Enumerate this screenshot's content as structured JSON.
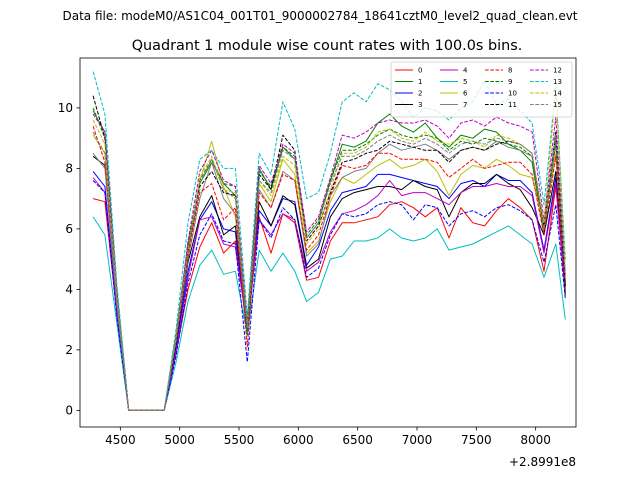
{
  "figure": {
    "suptitle": "Data file: modeM0/AS1C04_001T01_9000002784_18641cztM0_level2_quad_clean.evt",
    "title": "Quadrant 1 module wise count rates with 100.0s bins.",
    "offset_text": "+2.8991e8"
  },
  "chart_data": {
    "type": "line",
    "title": "Quadrant 1 module wise count rates with 100.0s bins.",
    "xlabel": "",
    "ylabel": "",
    "x_offset": 289910000,
    "xlim": [
      4160,
      8340
    ],
    "ylim": [
      -0.55,
      11.65
    ],
    "x_ticks": [
      4500,
      5000,
      5500,
      6000,
      6500,
      7000,
      7500,
      8000
    ],
    "x_tick_labels": [
      "4500",
      "5000",
      "5500",
      "6000",
      "6500",
      "7000",
      "7500",
      "8000"
    ],
    "y_ticks": [
      0,
      2,
      4,
      6,
      8,
      10
    ],
    "y_tick_labels": [
      "0",
      "2",
      "4",
      "6",
      "8",
      "10"
    ],
    "grid": false,
    "legend_position": "top-right",
    "x": [
      4270,
      4370,
      4470,
      4570,
      4670,
      4770,
      4870,
      4970,
      5070,
      5170,
      5270,
      5370,
      5470,
      5570,
      5670,
      5770,
      5870,
      5970,
      6070,
      6170,
      6270,
      6370,
      6470,
      6570,
      6670,
      6770,
      6870,
      6970,
      7070,
      7170,
      7270,
      7370,
      7470,
      7570,
      7670,
      7770,
      7870,
      7970,
      8070,
      8170,
      8250
    ],
    "series": [
      {
        "name": "0",
        "color": "#ff0000",
        "dash": "solid",
        "values": [
          7.0,
          6.9,
          3.2,
          0,
          0,
          0,
          0,
          1.9,
          4.0,
          5.4,
          6.2,
          5.2,
          5.6,
          2.8,
          6.4,
          5.2,
          6.5,
          6.2,
          4.3,
          4.4,
          5.6,
          6.2,
          6.2,
          6.3,
          6.4,
          6.8,
          6.9,
          6.7,
          6.4,
          6.7,
          5.7,
          6.7,
          6.2,
          6.1,
          6.6,
          7.0,
          6.7,
          6.3,
          4.6,
          7.4,
          3.9
        ]
      },
      {
        "name": "1",
        "color": "#008000",
        "dash": "solid",
        "values": [
          9.9,
          9.2,
          4.0,
          0,
          0,
          0,
          0,
          2.5,
          5.5,
          7.5,
          8.2,
          7.5,
          7.1,
          2.9,
          8.0,
          7.3,
          8.7,
          8.3,
          5.7,
          6.2,
          7.6,
          8.8,
          8.7,
          8.9,
          9.5,
          9.8,
          9.4,
          9.2,
          9.5,
          9.0,
          8.7,
          9.1,
          9.0,
          9.3,
          9.2,
          8.8,
          8.6,
          8.2,
          5.8,
          9.2,
          4.2
        ]
      },
      {
        "name": "2",
        "color": "#0000ff",
        "dash": "solid",
        "values": [
          7.9,
          7.4,
          3.3,
          0,
          0,
          0,
          0,
          2.1,
          4.6,
          6.3,
          6.9,
          6.0,
          5.9,
          2.5,
          6.6,
          6.1,
          7.0,
          6.9,
          4.8,
          5.4,
          6.6,
          7.2,
          7.3,
          7.4,
          7.8,
          7.8,
          7.7,
          7.6,
          7.5,
          7.4,
          7.0,
          7.5,
          7.6,
          7.4,
          7.8,
          7.6,
          7.6,
          7.2,
          5.3,
          7.7,
          4.0
        ]
      },
      {
        "name": "3",
        "color": "#000000",
        "dash": "solid",
        "values": [
          8.4,
          8.1,
          3.5,
          0,
          0,
          0,
          0,
          2.2,
          4.9,
          6.4,
          7.1,
          5.8,
          6.1,
          2.9,
          6.9,
          6.1,
          7.1,
          6.8,
          4.7,
          5.0,
          6.4,
          7.0,
          7.2,
          7.3,
          7.4,
          7.4,
          7.3,
          7.6,
          7.4,
          7.3,
          6.4,
          7.2,
          7.5,
          7.5,
          7.8,
          7.5,
          7.3,
          6.7,
          5.8,
          7.9,
          3.8
        ]
      },
      {
        "name": "4",
        "color": "#bf00bf",
        "dash": "solid",
        "values": [
          7.7,
          7.2,
          3.2,
          0,
          0,
          0,
          0,
          1.9,
          4.4,
          6.3,
          6.4,
          5.5,
          5.4,
          2.7,
          6.3,
          5.8,
          6.5,
          6.3,
          4.6,
          4.9,
          5.9,
          6.5,
          6.6,
          6.8,
          7.1,
          7.6,
          7.1,
          7.2,
          7.2,
          7.0,
          6.8,
          7.2,
          7.4,
          7.4,
          7.5,
          7.4,
          7.4,
          7.1,
          5.2,
          7.5,
          4.0
        ]
      },
      {
        "name": "5",
        "color": "#00bfbf",
        "dash": "solid",
        "values": [
          6.4,
          5.8,
          2.9,
          0,
          0,
          0,
          0,
          1.6,
          3.6,
          4.8,
          5.3,
          4.5,
          4.6,
          2.5,
          5.3,
          4.6,
          5.2,
          4.6,
          3.6,
          3.9,
          5.0,
          5.1,
          5.6,
          5.6,
          5.7,
          6.0,
          5.7,
          5.6,
          5.7,
          6.0,
          5.3,
          5.4,
          5.5,
          5.7,
          5.9,
          6.1,
          5.8,
          5.5,
          4.4,
          5.5,
          3.0
        ]
      },
      {
        "name": "6",
        "color": "#bfbf00",
        "dash": "solid",
        "values": [
          9.1,
          8.5,
          3.7,
          0,
          0,
          0,
          0,
          2.4,
          5.2,
          7.6,
          8.9,
          7.4,
          6.4,
          2.7,
          7.5,
          6.9,
          8.3,
          7.8,
          5.2,
          5.6,
          6.9,
          7.7,
          7.5,
          7.8,
          8.1,
          8.3,
          8.0,
          8.1,
          8.3,
          7.9,
          7.1,
          7.8,
          8.1,
          8.0,
          8.3,
          8.1,
          7.8,
          7.7,
          6.1,
          8.5,
          4.3
        ]
      },
      {
        "name": "7",
        "color": "#808080",
        "dash": "solid",
        "values": [
          8.5,
          8.0,
          3.5,
          0,
          0,
          0,
          0,
          2.3,
          5.0,
          7.0,
          8.2,
          7.0,
          6.5,
          2.7,
          7.3,
          6.7,
          7.9,
          7.6,
          5.1,
          5.5,
          7.1,
          7.7,
          7.9,
          8.0,
          8.5,
          8.8,
          8.6,
          8.7,
          8.8,
          8.6,
          8.3,
          8.6,
          8.7,
          8.6,
          8.9,
          8.7,
          8.6,
          8.4,
          6.0,
          8.8,
          4.2
        ]
      },
      {
        "name": "8",
        "color": "#ff0000",
        "dash": "dashed",
        "values": [
          9.4,
          8.2,
          3.8,
          0,
          0,
          0,
          0,
          2.3,
          5.1,
          7.2,
          7.5,
          6.3,
          6.7,
          2.1,
          7.2,
          6.7,
          7.8,
          7.6,
          5.3,
          5.8,
          7.1,
          8.1,
          8.0,
          8.1,
          8.5,
          8.5,
          8.3,
          8.3,
          8.3,
          8.2,
          7.7,
          8.0,
          8.3,
          8.0,
          8.1,
          8.2,
          8.2,
          7.8,
          5.8,
          8.4,
          4.1
        ]
      },
      {
        "name": "9",
        "color": "#008000",
        "dash": "dashed",
        "values": [
          10.0,
          9.0,
          3.9,
          0,
          0,
          0,
          0,
          2.4,
          5.4,
          7.6,
          8.3,
          7.5,
          7.4,
          2.5,
          7.9,
          7.4,
          8.7,
          8.4,
          5.8,
          6.3,
          7.6,
          8.6,
          8.6,
          8.8,
          9.1,
          9.3,
          9.1,
          9.0,
          9.1,
          9.0,
          8.6,
          8.9,
          8.8,
          9.0,
          8.9,
          8.8,
          8.7,
          8.4,
          6.0,
          8.9,
          4.2
        ]
      },
      {
        "name": "10",
        "color": "#0000ff",
        "dash": "dashed",
        "values": [
          7.6,
          7.2,
          3.1,
          0,
          0,
          0,
          0,
          1.8,
          4.2,
          5.8,
          6.5,
          5.6,
          5.5,
          1.6,
          6.3,
          5.7,
          6.7,
          6.3,
          4.4,
          4.7,
          5.8,
          6.5,
          6.4,
          6.5,
          6.8,
          6.9,
          6.8,
          6.3,
          6.8,
          6.7,
          6.1,
          6.5,
          6.6,
          6.4,
          6.7,
          6.8,
          6.6,
          6.3,
          4.9,
          6.8,
          3.7
        ]
      },
      {
        "name": "11",
        "color": "#000000",
        "dash": "dashed",
        "values": [
          10.4,
          9.0,
          3.9,
          0,
          0,
          0,
          0,
          2.3,
          5.3,
          7.4,
          7.9,
          7.2,
          7.1,
          2.8,
          7.8,
          7.3,
          9.1,
          8.6,
          5.6,
          6.1,
          7.2,
          8.2,
          8.3,
          8.5,
          8.6,
          8.9,
          8.8,
          8.7,
          8.6,
          8.6,
          8.2,
          8.6,
          8.7,
          8.6,
          8.8,
          8.9,
          8.8,
          8.5,
          6.1,
          9.2,
          4.1
        ]
      },
      {
        "name": "12",
        "color": "#bf00bf",
        "dash": "dashed",
        "values": [
          9.8,
          9.2,
          3.9,
          0,
          0,
          0,
          0,
          2.4,
          5.6,
          7.9,
          8.6,
          7.6,
          7.4,
          2.9,
          8.1,
          7.5,
          8.8,
          8.5,
          5.9,
          6.4,
          7.7,
          9.1,
          9.0,
          9.2,
          9.5,
          9.6,
          9.5,
          9.5,
          9.6,
          9.4,
          9.0,
          9.5,
          9.6,
          9.4,
          9.7,
          9.5,
          9.4,
          9.2,
          6.3,
          9.7,
          4.5
        ]
      },
      {
        "name": "13",
        "color": "#00bfbf",
        "dash": "dashed",
        "values": [
          11.2,
          9.8,
          4.2,
          0,
          0,
          0,
          0,
          2.7,
          6.2,
          8.3,
          8.6,
          8.0,
          8.0,
          3.1,
          8.5,
          7.8,
          10.2,
          9.3,
          7.0,
          7.2,
          8.5,
          10.2,
          10.5,
          10.2,
          10.8,
          10.6,
          10.2,
          9.7,
          10.0,
          9.9,
          9.6,
          10.0,
          10.2,
          10.9,
          10.1,
          10.3,
          9.9,
          9.5,
          6.8,
          10.7,
          5.0
        ]
      },
      {
        "name": "14",
        "color": "#bfbf00",
        "dash": "dashed",
        "values": [
          9.6,
          8.8,
          3.8,
          0,
          0,
          0,
          0,
          2.4,
          5.3,
          7.7,
          8.4,
          7.3,
          7.2,
          2.8,
          7.6,
          7.1,
          8.4,
          8.1,
          5.5,
          6.0,
          7.3,
          8.5,
          8.5,
          8.7,
          9.2,
          9.3,
          9.0,
          8.9,
          9.2,
          8.9,
          8.8,
          9.0,
          8.9,
          8.7,
          9.1,
          9.0,
          8.8,
          8.5,
          6.2,
          10.6,
          4.7
        ]
      },
      {
        "name": "15",
        "color": "#808080",
        "dash": "dashed",
        "values": [
          9.2,
          8.5,
          3.7,
          0,
          0,
          0,
          0,
          2.3,
          5.3,
          7.5,
          8.3,
          7.3,
          7.0,
          2.8,
          7.6,
          7.2,
          8.6,
          8.3,
          5.7,
          6.2,
          7.5,
          8.4,
          8.4,
          8.6,
          8.9,
          9.1,
          8.9,
          8.8,
          9.0,
          8.8,
          8.5,
          8.8,
          8.9,
          8.8,
          9.0,
          8.9,
          8.8,
          8.5,
          6.0,
          9.1,
          4.4
        ]
      }
    ]
  }
}
